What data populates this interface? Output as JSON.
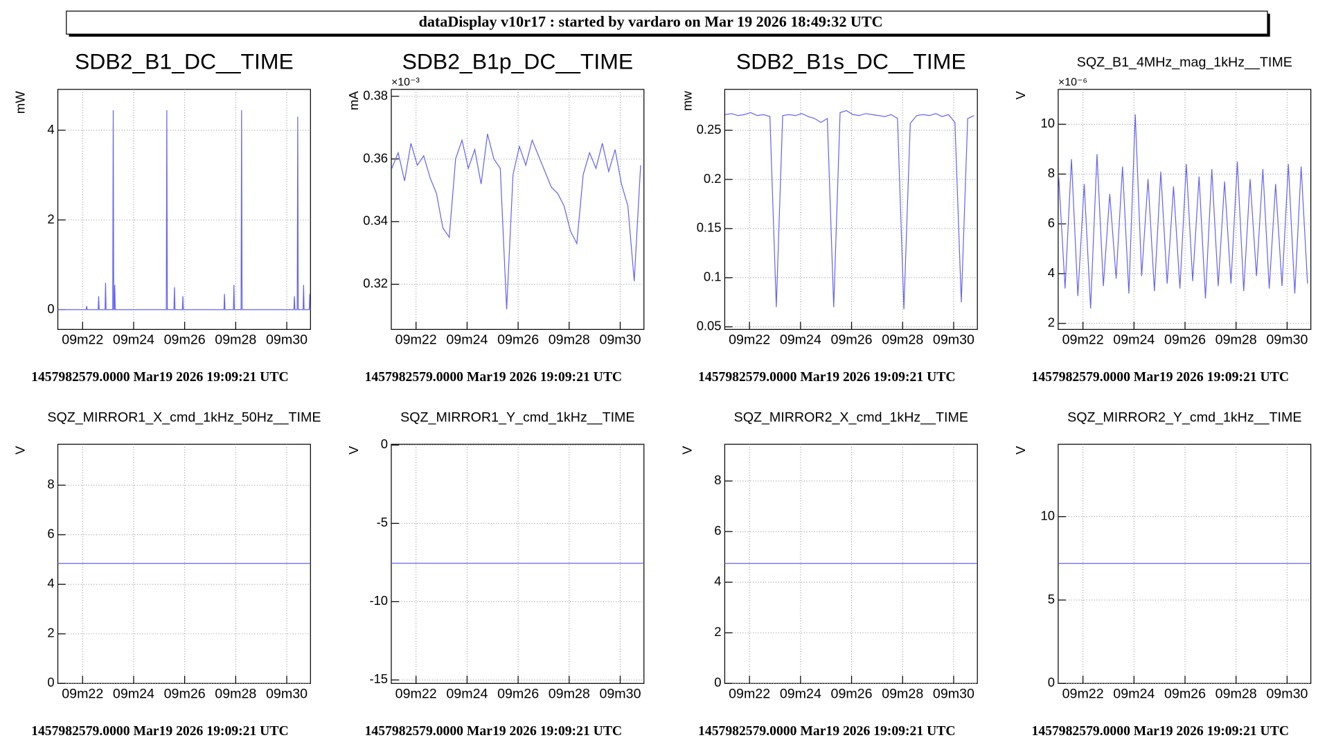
{
  "header": {
    "title": "dataDisplay v10r17 : started by vardaro on Mar 19 2026 18:49:32 UTC"
  },
  "chart_data": [
    {
      "type": "line",
      "title": "SDB2_B1_DC__TIME",
      "y_label": "mW",
      "footer": "1457982579.0000 Mar19 2026 19:09:21 UTC",
      "color": "#6464f5",
      "grid": true,
      "x": [
        21.03,
        22.14,
        22.16,
        22.18,
        22.61,
        22.63,
        22.65,
        22.88,
        22.9,
        22.92,
        23.18,
        23.2,
        23.22,
        23.24,
        23.26,
        23.28,
        25.28,
        25.3,
        25.32,
        25.58,
        25.6,
        25.62,
        25.91,
        25.93,
        25.95,
        27.54,
        27.56,
        27.58,
        27.91,
        27.93,
        27.95,
        28.21,
        28.23,
        28.25,
        30.28,
        30.3,
        30.32,
        30.41,
        30.43,
        30.45,
        30.64,
        30.66,
        30.68,
        30.88,
        30.9,
        30.92,
        30.93
      ],
      "values": [
        0,
        0,
        0.08,
        0,
        0,
        0.3,
        0,
        0,
        0.6,
        0,
        0,
        4.45,
        0,
        0,
        0.55,
        0,
        0,
        4.45,
        0,
        0,
        0.5,
        0,
        0,
        0.3,
        0,
        0,
        0.35,
        0,
        0,
        0.55,
        0,
        0,
        4.45,
        0,
        0,
        0.3,
        0,
        0,
        4.3,
        0,
        0,
        0.55,
        0,
        0,
        0.35,
        0,
        0
      ],
      "xlim": [
        21.03,
        30.93
      ],
      "xticks": [
        {
          "value": 22,
          "label": "09m22"
        },
        {
          "value": 24,
          "label": "09m24"
        },
        {
          "value": 26,
          "label": "09m26"
        },
        {
          "value": 28,
          "label": "09m28"
        },
        {
          "value": 30,
          "label": "09m30"
        }
      ],
      "ylim": [
        -0.44,
        4.91
      ],
      "yticks": [
        0,
        2,
        4
      ]
    },
    {
      "type": "line",
      "title": "SDB2_B1p_DC__TIME",
      "y_label": "mA",
      "y_exponent": "×10⁻³",
      "footer": "1457982579.0000 Mar19 2026 19:09:21 UTC",
      "color": "#6464f5",
      "grid": true,
      "x": [
        21.05,
        21.3,
        21.55,
        21.8,
        22.05,
        22.3,
        22.55,
        22.8,
        23.05,
        23.3,
        23.55,
        23.8,
        24.05,
        24.3,
        24.55,
        24.8,
        25.05,
        25.3,
        25.55,
        25.8,
        26.05,
        26.3,
        26.55,
        26.8,
        27.05,
        27.3,
        27.55,
        27.8,
        28.05,
        28.3,
        28.55,
        28.8,
        29.05,
        29.3,
        29.55,
        29.8,
        30.05,
        30.3,
        30.55,
        30.8
      ],
      "values": [
        0.357,
        0.362,
        0.353,
        0.365,
        0.358,
        0.361,
        0.354,
        0.349,
        0.338,
        0.335,
        0.36,
        0.366,
        0.357,
        0.363,
        0.352,
        0.368,
        0.36,
        0.357,
        0.312,
        0.355,
        0.364,
        0.358,
        0.366,
        0.361,
        0.356,
        0.351,
        0.349,
        0.345,
        0.337,
        0.333,
        0.355,
        0.362,
        0.357,
        0.365,
        0.356,
        0.363,
        0.352,
        0.345,
        0.321,
        0.358
      ],
      "xlim": [
        21.03,
        30.93
      ],
      "xticks": [
        {
          "value": 22,
          "label": "09m22"
        },
        {
          "value": 24,
          "label": "09m24"
        },
        {
          "value": 26,
          "label": "09m26"
        },
        {
          "value": 28,
          "label": "09m28"
        },
        {
          "value": 30,
          "label": "09m30"
        }
      ],
      "ylim": [
        0.3056,
        0.3822
      ],
      "yticks": [
        0.32,
        0.34,
        0.36,
        0.38
      ]
    },
    {
      "type": "line",
      "title": "SDB2_B1s_DC__TIME",
      "y_label": "mw",
      "footer": "1457982579.0000 Mar19 2026 19:09:21 UTC",
      "color": "#6464f5",
      "grid": true,
      "x": [
        21.05,
        21.3,
        21.55,
        21.8,
        22.05,
        22.3,
        22.55,
        22.8,
        23.05,
        23.3,
        23.55,
        23.8,
        24.05,
        24.3,
        24.55,
        24.8,
        25.05,
        25.3,
        25.55,
        25.8,
        26.05,
        26.3,
        26.55,
        26.8,
        27.05,
        27.3,
        27.55,
        27.8,
        28.05,
        28.3,
        28.55,
        28.8,
        29.05,
        29.3,
        29.55,
        29.8,
        30.05,
        30.3,
        30.55,
        30.8
      ],
      "values": [
        0.266,
        0.267,
        0.265,
        0.266,
        0.268,
        0.265,
        0.266,
        0.264,
        0.07,
        0.265,
        0.266,
        0.265,
        0.267,
        0.264,
        0.262,
        0.258,
        0.262,
        0.07,
        0.268,
        0.27,
        0.266,
        0.265,
        0.267,
        0.266,
        0.265,
        0.264,
        0.266,
        0.262,
        0.068,
        0.257,
        0.265,
        0.266,
        0.265,
        0.267,
        0.264,
        0.266,
        0.258,
        0.075,
        0.262,
        0.265
      ],
      "xlim": [
        21.03,
        30.93
      ],
      "xticks": [
        {
          "value": 22,
          "label": "09m22"
        },
        {
          "value": 24,
          "label": "09m24"
        },
        {
          "value": 26,
          "label": "09m26"
        },
        {
          "value": 28,
          "label": "09m28"
        },
        {
          "value": 30,
          "label": "09m30"
        }
      ],
      "ylim": [
        0.0474,
        0.2916
      ],
      "yticks": [
        0.05,
        0.1,
        0.15,
        0.2,
        0.25
      ]
    },
    {
      "type": "line",
      "title": "SQZ_B1_4MHz_mag_1kHz__TIME",
      "y_label": "V",
      "y_exponent": "×10⁻⁶",
      "footer": "1457982579.0000 Mar19 2026 19:09:21 UTC",
      "color": "#6464f5",
      "grid": true,
      "x": [
        21.05,
        21.3,
        21.55,
        21.8,
        22.05,
        22.3,
        22.55,
        22.8,
        23.05,
        23.3,
        23.55,
        23.8,
        24.05,
        24.3,
        24.55,
        24.8,
        25.05,
        25.3,
        25.55,
        25.8,
        26.05,
        26.3,
        26.55,
        26.8,
        27.05,
        27.3,
        27.55,
        27.8,
        28.05,
        28.3,
        28.55,
        28.8,
        29.05,
        29.3,
        29.55,
        29.8,
        30.05,
        30.3,
        30.55,
        30.8
      ],
      "values": [
        7.9,
        3.4,
        8.6,
        3.1,
        7.6,
        2.6,
        8.8,
        3.5,
        7.2,
        3.8,
        8.3,
        3.2,
        10.4,
        3.9,
        7.8,
        3.3,
        8.1,
        3.6,
        7.5,
        3.4,
        8.4,
        3.7,
        7.9,
        3.0,
        8.2,
        3.5,
        7.7,
        3.6,
        8.5,
        3.3,
        7.8,
        3.9,
        8.2,
        3.4,
        7.6,
        3.5,
        8.4,
        3.2,
        8.3,
        3.6
      ],
      "xlim": [
        21.03,
        30.93
      ],
      "xticks": [
        {
          "value": 22,
          "label": "09m22"
        },
        {
          "value": 24,
          "label": "09m24"
        },
        {
          "value": 26,
          "label": "09m26"
        },
        {
          "value": 28,
          "label": "09m28"
        },
        {
          "value": 30,
          "label": "09m30"
        }
      ],
      "ylim": [
        1.76,
        11.4
      ],
      "yticks": [
        2,
        4,
        6,
        8,
        10
      ]
    },
    {
      "type": "line",
      "title": "SQZ_MIRROR1_X_cmd_1kHz_50Hz__TIME",
      "y_label": "V",
      "footer": "1457982579.0000 Mar19 2026 19:09:21 UTC",
      "color": "#6464f5",
      "grid": true,
      "x": [
        21.03,
        30.93
      ],
      "values": [
        4.84,
        4.84
      ],
      "xlim": [
        21.03,
        30.93
      ],
      "xticks": [
        {
          "value": 22,
          "label": "09m22"
        },
        {
          "value": 24,
          "label": "09m24"
        },
        {
          "value": 26,
          "label": "09m26"
        },
        {
          "value": 28,
          "label": "09m28"
        },
        {
          "value": 30,
          "label": "09m30"
        }
      ],
      "ylim": [
        0,
        9.65
      ],
      "yticks": [
        0,
        2,
        4,
        6,
        8
      ]
    },
    {
      "type": "line",
      "title": "SQZ_MIRROR1_Y_cmd_1kHz__TIME",
      "y_label": "V",
      "footer": "1457982579.0000 Mar19 2026 19:09:21 UTC",
      "color": "#6464f5",
      "grid": true,
      "x": [
        21.03,
        30.93
      ],
      "values": [
        -7.55,
        -7.55
      ],
      "xlim": [
        21.03,
        30.93
      ],
      "xticks": [
        {
          "value": 22,
          "label": "09m22"
        },
        {
          "value": 24,
          "label": "09m24"
        },
        {
          "value": 26,
          "label": "09m26"
        },
        {
          "value": 28,
          "label": "09m28"
        },
        {
          "value": 30,
          "label": "09m30"
        }
      ],
      "ylim": [
        -15.22,
        0.05
      ],
      "yticks": [
        -15,
        -10,
        -5,
        0
      ]
    },
    {
      "type": "line",
      "title": "SQZ_MIRROR2_X_cmd_1kHz__TIME",
      "y_label": "V",
      "footer": "1457982579.0000 Mar19 2026 19:09:21 UTC",
      "color": "#6464f5",
      "grid": true,
      "x": [
        21.03,
        30.93
      ],
      "values": [
        4.74,
        4.74
      ],
      "xlim": [
        21.03,
        30.93
      ],
      "xticks": [
        {
          "value": 22,
          "label": "09m22"
        },
        {
          "value": 24,
          "label": "09m24"
        },
        {
          "value": 26,
          "label": "09m26"
        },
        {
          "value": 28,
          "label": "09m28"
        },
        {
          "value": 30,
          "label": "09m30"
        }
      ],
      "ylim": [
        0,
        9.45
      ],
      "yticks": [
        0,
        2,
        4,
        6,
        8
      ]
    },
    {
      "type": "line",
      "title": "SQZ_MIRROR2_Y_cmd_1kHz__TIME",
      "y_label": "V",
      "footer": "1457982579.0000 Mar19 2026 19:09:21 UTC",
      "color": "#6464f5",
      "grid": true,
      "x": [
        21.03,
        30.93
      ],
      "values": [
        7.19,
        7.19
      ],
      "xlim": [
        21.03,
        30.93
      ],
      "xticks": [
        {
          "value": 22,
          "label": "09m22"
        },
        {
          "value": 24,
          "label": "09m24"
        },
        {
          "value": 26,
          "label": "09m26"
        },
        {
          "value": 28,
          "label": "09m28"
        },
        {
          "value": 30,
          "label": "09m30"
        }
      ],
      "ylim": [
        0,
        14.34
      ],
      "yticks": [
        0,
        5,
        10
      ]
    }
  ]
}
